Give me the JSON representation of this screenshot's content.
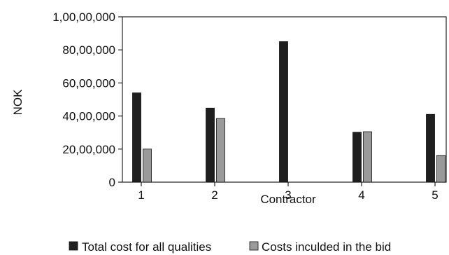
{
  "chart_data": {
    "type": "bar",
    "title": "",
    "xlabel": "Contractor",
    "ylabel": "NOK",
    "categories": [
      "1",
      "2",
      "3",
      "4",
      "5"
    ],
    "ylim": [
      0,
      10000000
    ],
    "yticks": [
      0,
      2000000,
      4000000,
      6000000,
      8000000,
      10000000
    ],
    "ytick_labels": [
      "0",
      "20,00,000",
      "40,00,000",
      "60,00,000",
      "80,00,000",
      "1,00,00,000"
    ],
    "grid": false,
    "legend_position": "bottom",
    "series": [
      {
        "name": "Total cost for all qualities",
        "color": "#1f1f1f",
        "values": [
          5400000,
          4480000,
          8500000,
          3020000,
          4100000
        ]
      },
      {
        "name": "Costs inculded in the bid",
        "color": "#9a9a9a",
        "values": [
          2000000,
          3850000,
          null,
          3050000,
          1620000
        ]
      }
    ]
  }
}
